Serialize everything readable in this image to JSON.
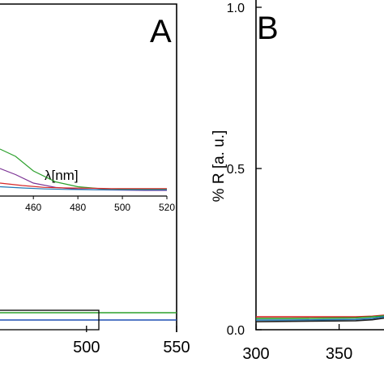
{
  "chart_data": [
    {
      "panel_label": "A",
      "type": "line",
      "xlim_visible": [
        452,
        550
      ],
      "xticks": [
        {
          "value": 500,
          "label": "500"
        },
        {
          "value": 550,
          "label": "550"
        }
      ],
      "series": [
        {
          "color": "#2ca02c",
          "x": [
            452,
            550
          ],
          "y": [
            0.02,
            0.02
          ]
        },
        {
          "color": "#1f4fb4",
          "x": [
            452,
            550
          ],
          "y": [
            0.005,
            0.005
          ]
        }
      ],
      "inset": {
        "type": "line",
        "xlabel": "λ[nm]",
        "xlim": [
          445,
          520
        ],
        "xticks": [
          {
            "value": 460,
            "label": "460"
          },
          {
            "value": 480,
            "label": "480"
          },
          {
            "value": 500,
            "label": "500"
          },
          {
            "value": 520,
            "label": "520"
          }
        ],
        "series": [
          {
            "color": "#2ca02c",
            "x": [
              445,
              452,
              460,
              470,
              480,
              490,
              500,
              510,
              520
            ],
            "y": [
              0.36,
              0.3,
              0.18,
              0.09,
              0.05,
              0.035,
              0.03,
              0.03,
              0.03
            ]
          },
          {
            "color": "#7b3294",
            "x": [
              445,
              452,
              460,
              470,
              480,
              490,
              500,
              510,
              520
            ],
            "y": [
              0.2,
              0.15,
              0.08,
              0.045,
              0.03,
              0.025,
              0.022,
              0.02,
              0.02
            ]
          },
          {
            "color": "#d62728",
            "x": [
              445,
              455,
              465,
              475,
              485,
              495,
              505,
              520
            ],
            "y": [
              0.08,
              0.06,
              0.045,
              0.04,
              0.038,
              0.035,
              0.035,
              0.035
            ]
          },
          {
            "color": "#1f77b4",
            "x": [
              445,
              455,
              465,
              475,
              485,
              495,
              505,
              520
            ],
            "y": [
              0.05,
              0.04,
              0.032,
              0.028,
              0.026,
              0.025,
              0.025,
              0.025
            ]
          }
        ]
      }
    },
    {
      "panel_label": "B",
      "type": "line",
      "ylabel": "% R [a. u.]",
      "ylim": [
        0.0,
        1.0
      ],
      "xlim_visible": [
        300,
        377
      ],
      "yticks": [
        {
          "value": 0.0,
          "label": "0.0"
        },
        {
          "value": 0.5,
          "label": "0.5"
        },
        {
          "value": 1.0,
          "label": "1.0"
        }
      ],
      "xticks": [
        {
          "value": 300,
          "label": "300"
        },
        {
          "value": 350,
          "label": "350"
        }
      ],
      "series": [
        {
          "color": "#d62728",
          "x": [
            300,
            320,
            340,
            360,
            370,
            377
          ],
          "y": [
            0.04,
            0.04,
            0.04,
            0.04,
            0.042,
            0.045
          ]
        },
        {
          "color": "#2ca02c",
          "x": [
            300,
            320,
            340,
            360,
            370,
            377
          ],
          "y": [
            0.035,
            0.035,
            0.036,
            0.037,
            0.04,
            0.043
          ]
        },
        {
          "color": "#1f77b4",
          "x": [
            300,
            320,
            340,
            360,
            370,
            377
          ],
          "y": [
            0.03,
            0.03,
            0.031,
            0.032,
            0.035,
            0.04
          ]
        },
        {
          "color": "#222222",
          "x": [
            300,
            320,
            340,
            360,
            370,
            377
          ],
          "y": [
            0.025,
            0.026,
            0.027,
            0.028,
            0.031,
            0.036
          ]
        }
      ]
    }
  ]
}
